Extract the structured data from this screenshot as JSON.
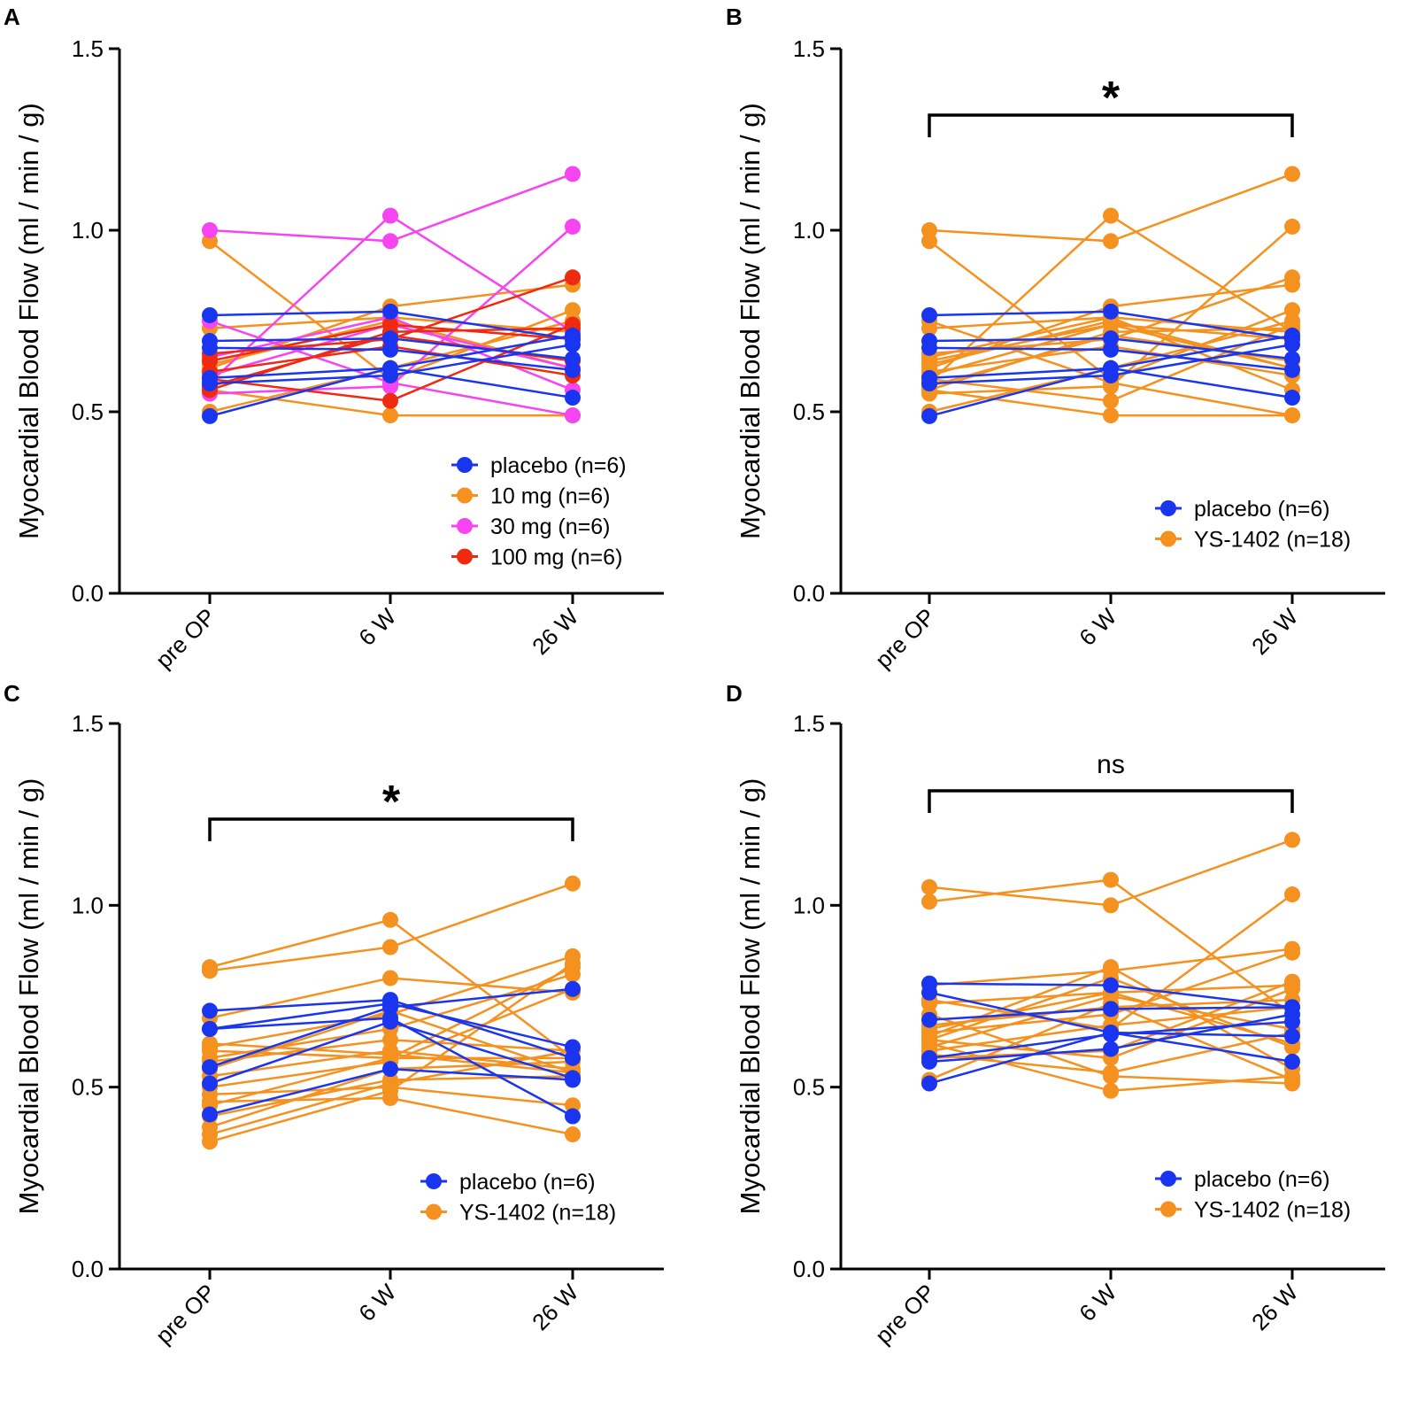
{
  "colors": {
    "placebo": "#1a35f0",
    "orange": "#f5911e",
    "pink": "#f544f0",
    "red": "#f02a10"
  },
  "chart_data": [
    {
      "panel": "A",
      "type": "line",
      "ylabel": "Myocardial Blood Flow (ml / min / g)",
      "categories": [
        "pre OP",
        "6 W",
        "26 W"
      ],
      "ylim": [
        0,
        1.5
      ],
      "yticks": [
        "0.0",
        "0.5",
        "1.0",
        "1.5"
      ],
      "legend": "bottom-right",
      "series": [
        {
          "name": "placebo (n=6)",
          "color": "placebo",
          "subjects": [
            [
              0.766,
              0.776,
              0.7
            ],
            [
              0.695,
              0.702,
              0.646
            ],
            [
              0.676,
              0.671,
              0.615
            ],
            [
              0.593,
              0.62,
              0.539
            ],
            [
              0.578,
              0.6,
              0.685
            ],
            [
              0.488,
              0.62,
              0.71
            ]
          ]
        },
        {
          "name": "10 mg (n=6)",
          "color": "orange",
          "subjects": [
            [
              0.97,
              0.59,
              0.78
            ],
            [
              0.73,
              0.76,
              0.72
            ],
            [
              0.62,
              0.79,
              0.85
            ],
            [
              0.56,
              0.49,
              0.49
            ],
            [
              0.5,
              0.62,
              0.75
            ],
            [
              0.63,
              0.75,
              0.62
            ]
          ]
        },
        {
          "name": "30 mg (n=6)",
          "color": "pink",
          "subjects": [
            [
              1.0,
              0.97,
              1.155
            ],
            [
              0.58,
              1.04,
              0.72
            ],
            [
              0.55,
              0.57,
              1.01
            ],
            [
              0.65,
              0.76,
              0.56
            ],
            [
              0.6,
              0.74,
              0.62
            ],
            [
              0.75,
              0.58,
              0.49
            ]
          ]
        },
        {
          "name": "100 mg (n=6)",
          "color": "red",
          "subjects": [
            [
              0.66,
              0.7,
              0.87
            ],
            [
              0.59,
              0.53,
              0.74
            ],
            [
              0.56,
              0.72,
              0.73
            ],
            [
              0.61,
              0.68,
              0.6
            ],
            [
              0.64,
              0.74,
              0.7
            ],
            [
              0.57,
              0.71,
              0.64
            ]
          ]
        }
      ]
    },
    {
      "panel": "B",
      "type": "line",
      "ylabel": "Myocardial Blood Flow (ml / min / g)",
      "categories": [
        "pre OP",
        "6 W",
        "26 W"
      ],
      "ylim": [
        0,
        1.5
      ],
      "yticks": [
        "0.0",
        "0.5",
        "1.0",
        "1.5"
      ],
      "legend": "bottom-right",
      "significance": "*",
      "series": [
        {
          "name": "placebo (n=6)",
          "color": "placebo",
          "subjects": [
            [
              0.766,
              0.776,
              0.7
            ],
            [
              0.695,
              0.702,
              0.646
            ],
            [
              0.676,
              0.671,
              0.615
            ],
            [
              0.593,
              0.62,
              0.539
            ],
            [
              0.578,
              0.6,
              0.685
            ],
            [
              0.488,
              0.62,
              0.71
            ]
          ]
        },
        {
          "name": "YS-1402 (n=18)",
          "color": "orange",
          "subjects": [
            [
              0.97,
              0.59,
              0.78
            ],
            [
              0.73,
              0.76,
              0.72
            ],
            [
              0.62,
              0.79,
              0.85
            ],
            [
              0.56,
              0.49,
              0.49
            ],
            [
              0.5,
              0.62,
              0.75
            ],
            [
              0.63,
              0.75,
              0.62
            ],
            [
              1.0,
              0.97,
              1.155
            ],
            [
              0.58,
              1.04,
              0.72
            ],
            [
              0.55,
              0.57,
              1.01
            ],
            [
              0.65,
              0.76,
              0.56
            ],
            [
              0.6,
              0.74,
              0.62
            ],
            [
              0.75,
              0.58,
              0.49
            ],
            [
              0.66,
              0.7,
              0.87
            ],
            [
              0.59,
              0.53,
              0.74
            ],
            [
              0.56,
              0.72,
              0.73
            ],
            [
              0.61,
              0.68,
              0.6
            ],
            [
              0.64,
              0.74,
              0.7
            ],
            [
              0.57,
              0.71,
              0.64
            ]
          ]
        }
      ]
    },
    {
      "panel": "C",
      "type": "line",
      "ylabel": "Myocardial Blood Flow (ml / min / g)",
      "categories": [
        "pre OP",
        "6 W",
        "26 W"
      ],
      "ylim": [
        0,
        1.5
      ],
      "yticks": [
        "0.0",
        "0.5",
        "1.0",
        "1.5"
      ],
      "legend": "bottom-right",
      "significance": "*",
      "series": [
        {
          "name": "placebo (n=6)",
          "color": "placebo",
          "subjects": [
            [
              0.71,
              0.74,
              0.58
            ],
            [
              0.66,
              0.73,
              0.61
            ],
            [
              0.66,
              0.69,
              0.42
            ],
            [
              0.555,
              0.72,
              0.77
            ],
            [
              0.51,
              0.68,
              0.525
            ],
            [
              0.425,
              0.55,
              0.52
            ]
          ]
        },
        {
          "name": "YS-1402 (n=18)",
          "color": "orange",
          "subjects": [
            [
              0.83,
              0.96,
              0.58
            ],
            [
              0.82,
              0.885,
              1.06
            ],
            [
              0.69,
              0.8,
              0.76
            ],
            [
              0.61,
              0.7,
              0.86
            ],
            [
              0.6,
              0.58,
              0.83
            ],
            [
              0.58,
              0.66,
              0.81
            ],
            [
              0.57,
              0.63,
              0.6
            ],
            [
              0.55,
              0.71,
              0.54
            ],
            [
              0.53,
              0.6,
              0.55
            ],
            [
              0.5,
              0.57,
              0.77
            ],
            [
              0.48,
              0.5,
              0.45
            ],
            [
              0.46,
              0.47,
              0.37
            ],
            [
              0.45,
              0.58,
              0.58
            ],
            [
              0.42,
              0.52,
              0.53
            ],
            [
              0.39,
              0.55,
              0.57
            ],
            [
              0.37,
              0.51,
              0.6
            ],
            [
              0.35,
              0.49,
              0.84
            ],
            [
              0.62,
              0.59,
              0.54
            ]
          ]
        }
      ]
    },
    {
      "panel": "D",
      "type": "line",
      "ylabel": "Myocardial Blood Flow (ml / min / g)",
      "categories": [
        "pre OP",
        "6 W",
        "26 W"
      ],
      "ylim": [
        0,
        1.5
      ],
      "yticks": [
        "0.0",
        "0.5",
        "1.0",
        "1.5"
      ],
      "legend": "bottom-right",
      "significance": "ns",
      "series": [
        {
          "name": "placebo (n=6)",
          "color": "placebo",
          "subjects": [
            [
              0.785,
              0.78,
              0.72
            ],
            [
              0.76,
              0.65,
              0.64
            ],
            [
              0.685,
              0.715,
              0.72
            ],
            [
              0.58,
              0.645,
              0.68
            ],
            [
              0.57,
              0.605,
              0.7
            ],
            [
              0.51,
              0.65,
              0.57
            ]
          ]
        },
        {
          "name": "YS-1402 (n=18)",
          "color": "orange",
          "subjects": [
            [
              1.05,
              1.0,
              1.18
            ],
            [
              1.01,
              1.07,
              0.7
            ],
            [
              0.78,
              0.82,
              0.88
            ],
            [
              0.74,
              0.66,
              1.03
            ],
            [
              0.73,
              0.76,
              0.78
            ],
            [
              0.7,
              0.53,
              0.51
            ],
            [
              0.66,
              0.76,
              0.62
            ],
            [
              0.65,
              0.7,
              0.87
            ],
            [
              0.64,
              0.83,
              0.55
            ],
            [
              0.63,
              0.58,
              0.77
            ],
            [
              0.62,
              0.49,
              0.53
            ],
            [
              0.61,
              0.75,
              0.66
            ],
            [
              0.6,
              0.67,
              0.72
            ],
            [
              0.59,
              0.54,
              0.65
            ],
            [
              0.58,
              0.6,
              0.79
            ],
            [
              0.52,
              0.73,
              0.52
            ],
            [
              0.63,
              0.8,
              0.61
            ],
            [
              0.67,
              0.72,
              0.74
            ]
          ]
        }
      ]
    }
  ]
}
